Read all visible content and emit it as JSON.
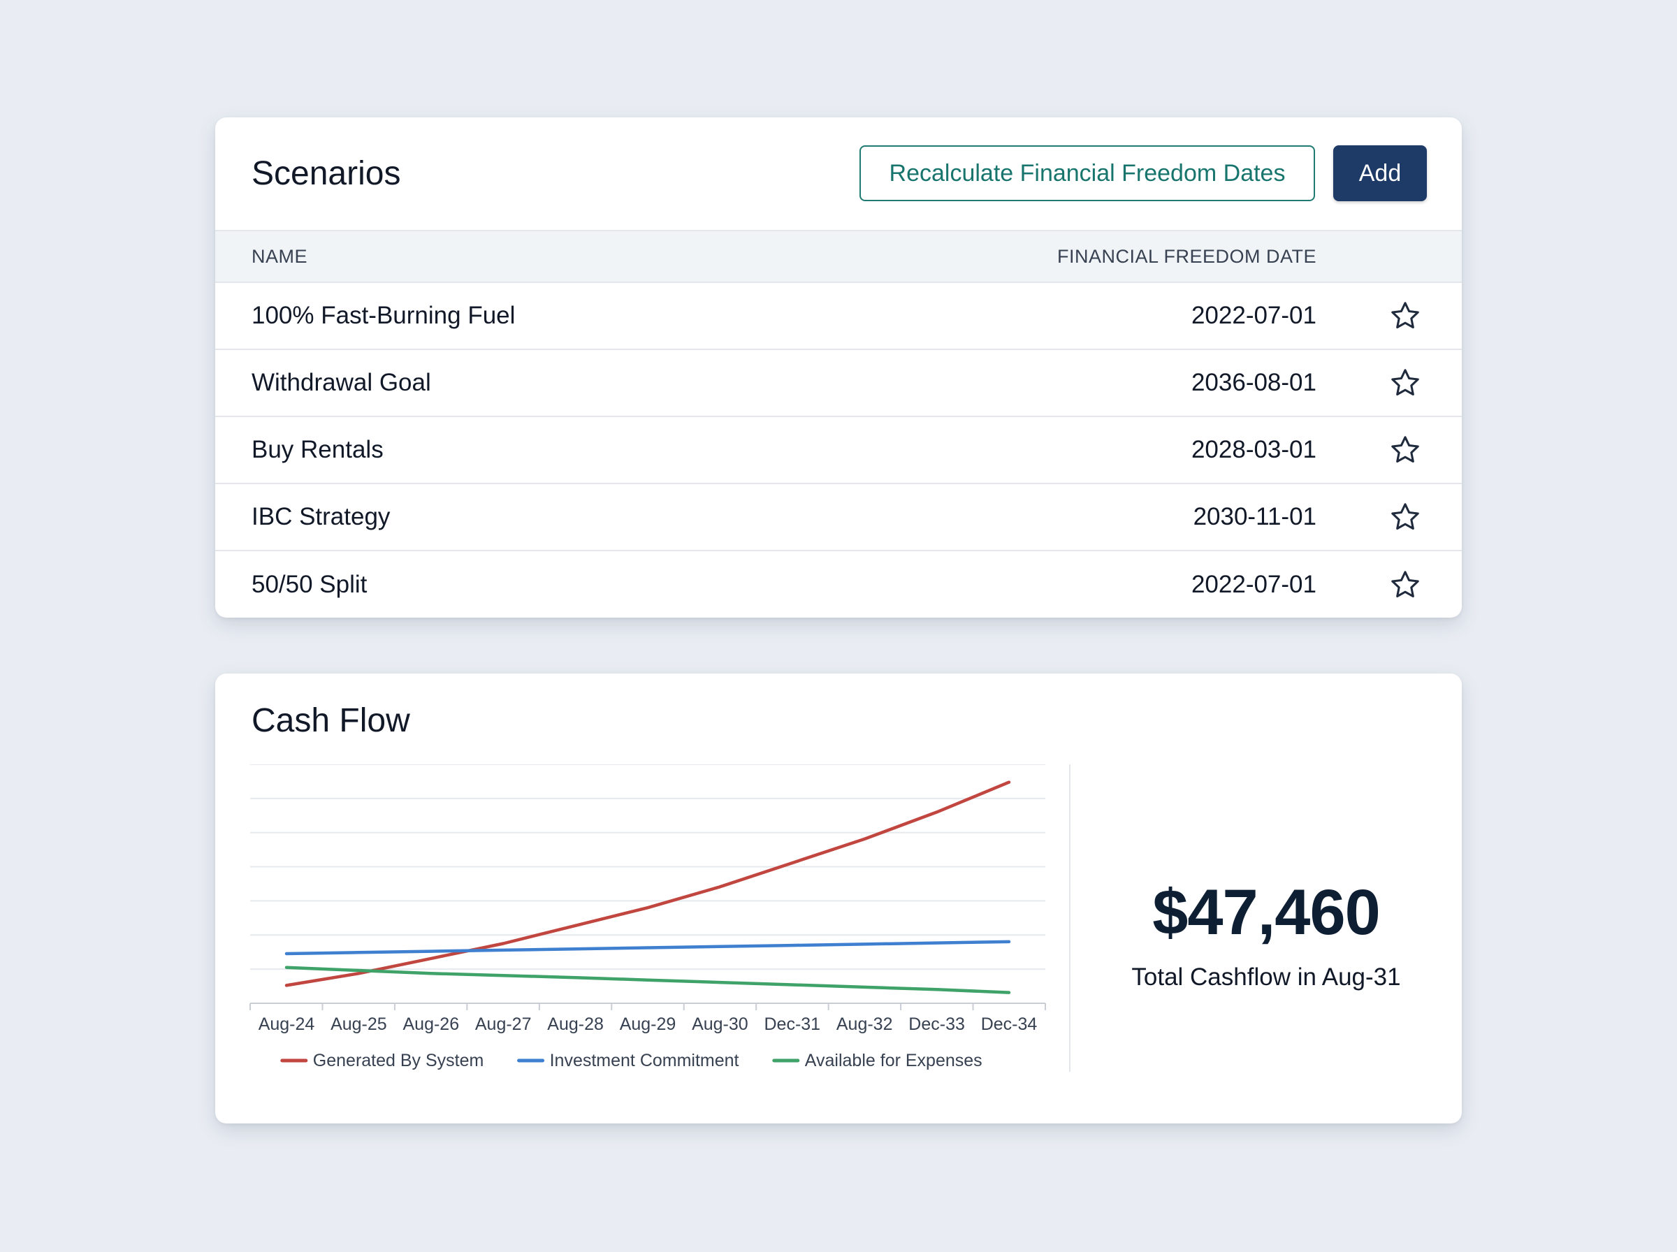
{
  "scenarios": {
    "title": "Scenarios",
    "recalculate_label": "Recalculate Financial Freedom Dates",
    "add_label": "Add",
    "columns": {
      "name": "NAME",
      "date": "FINANCIAL FREEDOM DATE"
    },
    "rows": [
      {
        "name": "100% Fast-Burning Fuel",
        "date": "2022-07-01"
      },
      {
        "name": "Withdrawal Goal",
        "date": "2036-08-01"
      },
      {
        "name": "Buy Rentals",
        "date": "2028-03-01"
      },
      {
        "name": "IBC Strategy",
        "date": "2030-11-01"
      },
      {
        "name": "50/50 Split",
        "date": "2022-07-01"
      }
    ]
  },
  "cashflow": {
    "title": "Cash Flow",
    "kpi_value": "$47,460",
    "kpi_label": "Total Cashflow in Aug-31"
  },
  "chart_data": {
    "type": "line",
    "x": [
      "Aug-24",
      "Aug-25",
      "Aug-26",
      "Aug-27",
      "Aug-28",
      "Aug-29",
      "Aug-30",
      "Dec-31",
      "Aug-32",
      "Dec-33",
      "Dec-34"
    ],
    "y_gridlines": 7,
    "grid": true,
    "legend_position": "bottom",
    "series": [
      {
        "name": "Generated By System",
        "color": "#c0463f",
        "values": [
          0.6,
          1.0,
          1.5,
          2.0,
          2.6,
          3.2,
          3.9,
          4.7,
          5.5,
          6.4,
          7.4
        ]
      },
      {
        "name": "Investment Commitment",
        "color": "#3f7fcf",
        "values": [
          1.66,
          1.7,
          1.74,
          1.78,
          1.82,
          1.86,
          1.9,
          1.94,
          1.98,
          2.02,
          2.06
        ]
      },
      {
        "name": "Available for Expenses",
        "color": "#3fa268",
        "values": [
          1.2,
          1.1,
          1.0,
          0.93,
          0.86,
          0.78,
          0.7,
          0.62,
          0.54,
          0.46,
          0.36
        ]
      }
    ]
  }
}
